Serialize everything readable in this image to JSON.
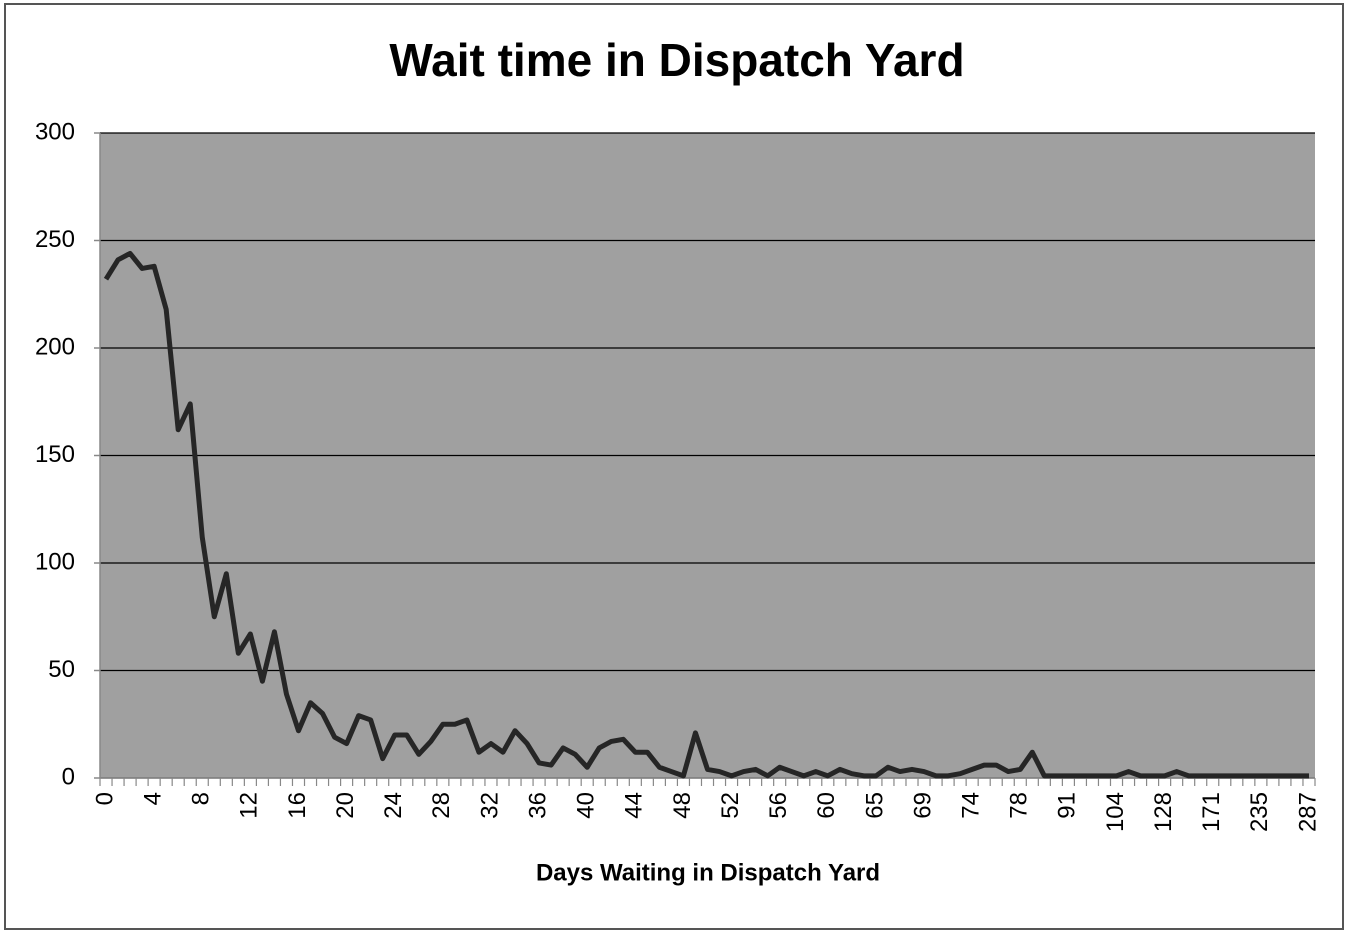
{
  "chart_data": {
    "type": "line",
    "title": "Wait time in Dispatch Yard",
    "x_label": "Days Waiting in Dispatch Yard",
    "categories": [
      "0",
      null,
      null,
      null,
      "4",
      null,
      null,
      null,
      "8",
      null,
      null,
      null,
      "12",
      null,
      null,
      null,
      "16",
      null,
      null,
      null,
      "20",
      null,
      null,
      null,
      "24",
      null,
      null,
      null,
      "28",
      null,
      null,
      null,
      "32",
      null,
      null,
      null,
      "36",
      null,
      null,
      null,
      "40",
      null,
      null,
      null,
      "44",
      null,
      null,
      null,
      "48",
      null,
      null,
      null,
      "52",
      null,
      null,
      null,
      "56",
      null,
      null,
      null,
      "60",
      null,
      null,
      null,
      "65",
      null,
      null,
      null,
      "69",
      null,
      null,
      null,
      "74",
      null,
      null,
      null,
      "78",
      null,
      null,
      null,
      "91",
      null,
      null,
      null,
      "104",
      null,
      null,
      null,
      "128",
      null,
      null,
      null,
      "171",
      null,
      null,
      null,
      "235",
      null,
      null,
      null,
      "287"
    ],
    "series": [
      {
        "name": "Wait time",
        "color": "#262626",
        "values": [
          232,
          241,
          244,
          237,
          238,
          218,
          162,
          174,
          112,
          75,
          95,
          58,
          67,
          45,
          68,
          39,
          22,
          35,
          30,
          19,
          16,
          29,
          27,
          9,
          20,
          20,
          11,
          17,
          25,
          25,
          27,
          12,
          16,
          12,
          22,
          16,
          7,
          6,
          14,
          11,
          5,
          14,
          17,
          18,
          12,
          12,
          5,
          3,
          1,
          21,
          4,
          3,
          1,
          3,
          4,
          1,
          5,
          3,
          1,
          3,
          1,
          4,
          2,
          1,
          1,
          5,
          3,
          4,
          3,
          1,
          1,
          2,
          4,
          6,
          6,
          3,
          4,
          12,
          1,
          1,
          1,
          1,
          1,
          1,
          1,
          3,
          1,
          1,
          1,
          3,
          1,
          1,
          1,
          1,
          1,
          1,
          1,
          1,
          1,
          1,
          1
        ]
      }
    ],
    "ylim": [
      0,
      300
    ],
    "yticks": [
      0,
      50,
      100,
      150,
      200,
      250,
      300
    ],
    "grid": true,
    "plot_background": "#a0a0a0"
  }
}
